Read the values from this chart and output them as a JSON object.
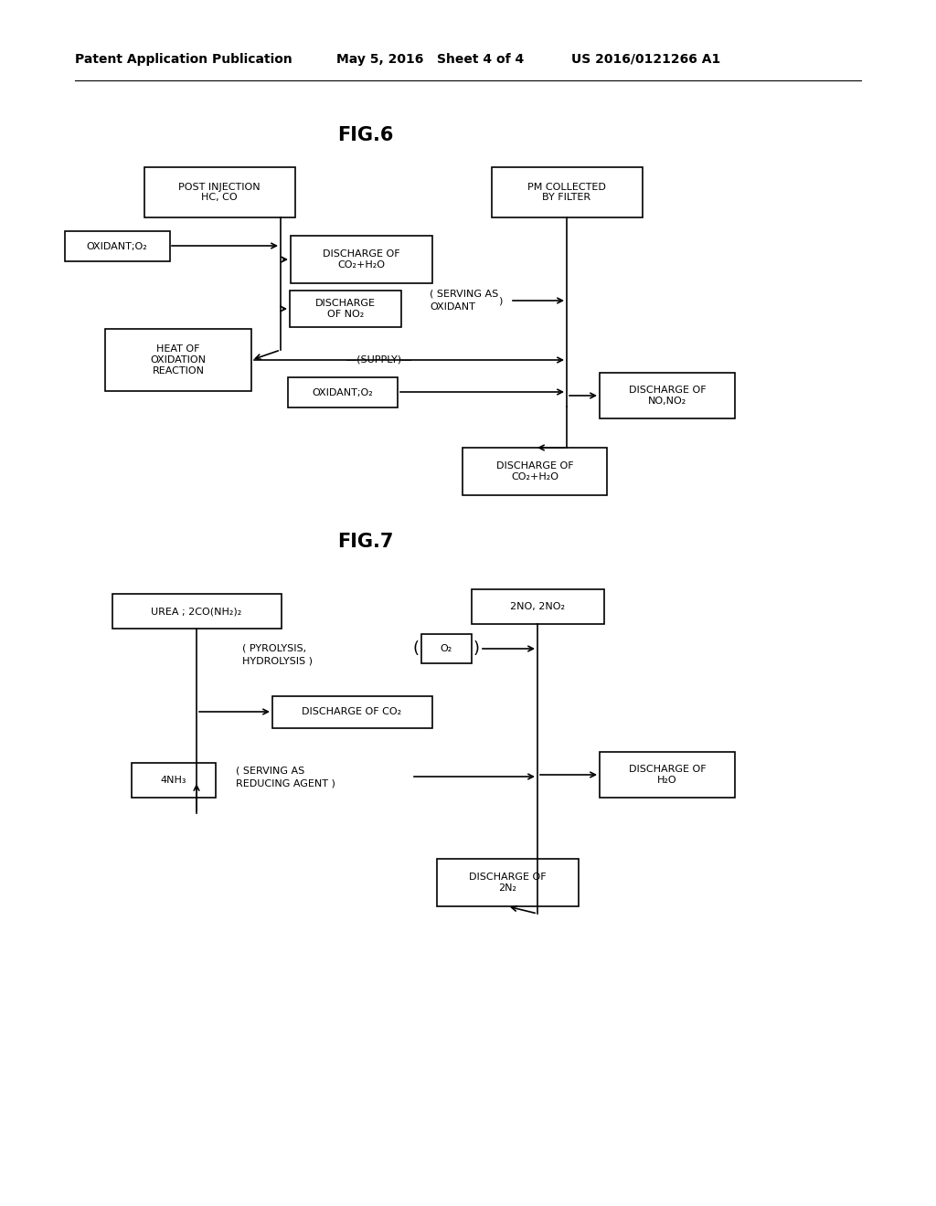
{
  "bg_color": "#ffffff",
  "header_left": "Patent Application Publication",
  "header_mid": "May 5, 2016   Sheet 4 of 4",
  "header_right": "US 2016/0121266 A1",
  "fig6_title": "FIG.6",
  "fig7_title": "FIG.7",
  "font_size_header": 10,
  "font_size_title": 15,
  "font_size_box": 8,
  "font_size_label": 8
}
